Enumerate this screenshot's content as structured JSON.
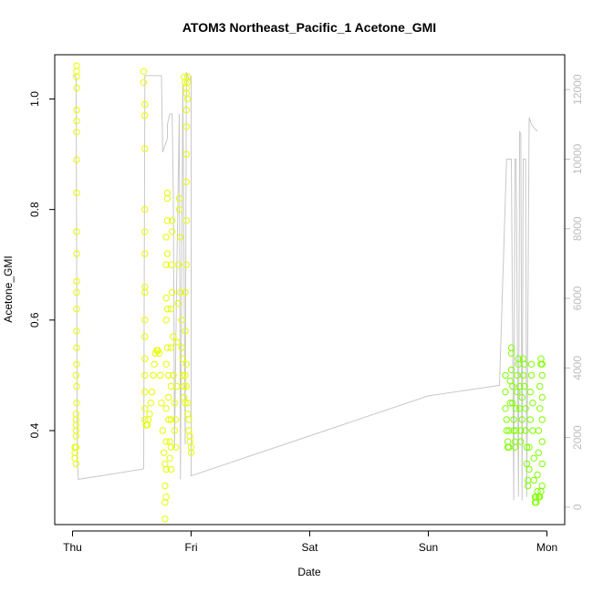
{
  "colors": {
    "altitude_line": "#c8c8c8",
    "point_yellow": "#e6ff00",
    "point_green": "#7fff00",
    "axis": "#000000",
    "right_axis": "#bdbdbd"
  },
  "chart_data": {
    "type": "scatter",
    "title": "ATOM3 Northeast_Pacific_1 Acetone_GMI",
    "xlabel": "Date",
    "ylabel": "Acetone_GMI",
    "x_ticks": [
      {
        "label": "Thu",
        "value": 0
      },
      {
        "label": "Fri",
        "value": 1
      },
      {
        "label": "Sat",
        "value": 2
      },
      {
        "label": "Sun",
        "value": 3
      },
      {
        "label": "Mon",
        "value": 4
      }
    ],
    "xlim": [
      -0.15,
      4.15
    ],
    "ylim": [
      0.23,
      1.08
    ],
    "y_ticks": [
      0.4,
      0.6,
      0.8,
      1.0
    ],
    "y_tick_labels": [
      "0.4",
      "0.6",
      "0.8",
      "1.0"
    ],
    "y2lim": [
      -500,
      13000
    ],
    "y2_ticks": [
      0,
      2000,
      4000,
      6000,
      8000,
      10000,
      12000
    ],
    "y2_tick_labels": [
      "0",
      "2000",
      "4000",
      "6000",
      "8000",
      "10000",
      "12000"
    ],
    "legend": "none",
    "grid": false,
    "series": [
      {
        "kind": "points",
        "color": "#e6ff00",
        "points": [
          [
            0.02,
            0.36
          ],
          [
            0.02,
            0.35
          ],
          [
            0.03,
            0.37
          ],
          [
            0.03,
            0.34
          ],
          [
            0.03,
            0.39
          ],
          [
            0.03,
            0.41
          ],
          [
            0.03,
            0.43
          ],
          [
            0.035,
            0.45
          ],
          [
            0.035,
            0.48
          ],
          [
            0.035,
            0.52
          ],
          [
            0.035,
            0.55
          ],
          [
            0.035,
            0.58
          ],
          [
            0.035,
            0.62
          ],
          [
            0.035,
            0.65
          ],
          [
            0.035,
            0.67
          ],
          [
            0.035,
            0.72
          ],
          [
            0.035,
            0.76
          ],
          [
            0.035,
            0.83
          ],
          [
            0.035,
            0.89
          ],
          [
            0.035,
            0.94
          ],
          [
            0.035,
            0.96
          ],
          [
            0.035,
            0.98
          ],
          [
            0.035,
            1.02
          ],
          [
            0.035,
            1.04
          ],
          [
            0.035,
            1.05
          ],
          [
            0.035,
            1.06
          ],
          [
            0.03,
            0.42
          ],
          [
            0.03,
            0.4
          ],
          [
            0.02,
            0.37
          ],
          [
            0.03,
            0.5
          ],
          [
            0.6,
            1.05
          ],
          [
            0.6,
            1.03
          ],
          [
            0.61,
            0.99
          ],
          [
            0.61,
            0.97
          ],
          [
            0.61,
            0.91
          ],
          [
            0.61,
            0.8
          ],
          [
            0.61,
            0.76
          ],
          [
            0.61,
            0.72
          ],
          [
            0.61,
            0.66
          ],
          [
            0.61,
            0.65
          ],
          [
            0.61,
            0.6
          ],
          [
            0.61,
            0.57
          ],
          [
            0.61,
            0.53
          ],
          [
            0.61,
            0.5
          ],
          [
            0.61,
            0.47
          ],
          [
            0.61,
            0.44
          ],
          [
            0.61,
            0.42
          ],
          [
            0.62,
            0.41
          ],
          [
            0.63,
            0.41
          ],
          [
            0.64,
            0.42
          ],
          [
            0.65,
            0.43
          ],
          [
            0.66,
            0.45
          ],
          [
            0.67,
            0.47
          ],
          [
            0.68,
            0.5
          ],
          [
            0.69,
            0.52
          ],
          [
            0.7,
            0.54
          ],
          [
            0.71,
            0.545
          ],
          [
            0.72,
            0.545
          ],
          [
            0.73,
            0.54
          ],
          [
            0.74,
            0.5
          ],
          [
            0.75,
            0.45
          ],
          [
            0.76,
            0.4
          ],
          [
            0.77,
            0.36
          ],
          [
            0.78,
            0.34
          ],
          [
            0.78,
            0.3
          ],
          [
            0.78,
            0.27
          ],
          [
            0.78,
            0.24
          ],
          [
            0.79,
            0.28
          ],
          [
            0.79,
            0.33
          ],
          [
            0.79,
            0.38
          ],
          [
            0.79,
            0.44
          ],
          [
            0.79,
            0.52
          ],
          [
            0.79,
            0.6
          ],
          [
            0.79,
            0.64
          ],
          [
            0.79,
            0.7
          ],
          [
            0.79,
            0.75
          ],
          [
            0.8,
            0.78
          ],
          [
            0.8,
            0.83
          ],
          [
            0.8,
            0.82
          ],
          [
            0.8,
            0.72
          ],
          [
            0.8,
            0.62
          ],
          [
            0.8,
            0.55
          ],
          [
            0.81,
            0.5
          ],
          [
            0.81,
            0.46
          ],
          [
            0.81,
            0.42
          ],
          [
            0.82,
            0.38
          ],
          [
            0.82,
            0.35
          ],
          [
            0.83,
            0.33
          ],
          [
            0.83,
            0.37
          ],
          [
            0.83,
            0.42
          ],
          [
            0.83,
            0.48
          ],
          [
            0.83,
            0.55
          ],
          [
            0.83,
            0.62
          ],
          [
            0.83,
            0.7
          ],
          [
            0.84,
            0.78
          ],
          [
            0.84,
            0.76
          ],
          [
            0.84,
            0.65
          ],
          [
            0.85,
            0.57
          ],
          [
            0.85,
            0.5
          ],
          [
            0.86,
            0.45
          ],
          [
            0.86,
            0.4
          ],
          [
            0.87,
            0.37
          ],
          [
            0.87,
            0.42
          ],
          [
            0.88,
            0.48
          ],
          [
            0.88,
            0.56
          ],
          [
            0.89,
            0.63
          ],
          [
            0.89,
            0.7
          ],
          [
            0.9,
            0.8
          ],
          [
            0.9,
            0.82
          ],
          [
            0.91,
            0.75
          ],
          [
            0.91,
            0.65
          ],
          [
            0.92,
            0.6
          ],
          [
            0.92,
            0.55
          ],
          [
            0.93,
            0.53
          ],
          [
            0.93,
            0.5
          ],
          [
            0.94,
            0.48
          ],
          [
            0.94,
            0.46
          ],
          [
            0.95,
            0.45
          ],
          [
            0.95,
            0.5
          ],
          [
            0.95,
            0.58
          ],
          [
            0.95,
            0.65
          ],
          [
            0.96,
            0.7
          ],
          [
            0.96,
            0.78
          ],
          [
            0.96,
            0.85
          ],
          [
            0.96,
            0.9
          ],
          [
            0.96,
            0.95
          ],
          [
            0.96,
            0.98
          ],
          [
            0.96,
            1.01
          ],
          [
            0.97,
            1.03
          ],
          [
            0.97,
            1.04
          ],
          [
            0.96,
            0.52
          ],
          [
            0.96,
            0.48
          ],
          [
            0.97,
            0.45
          ],
          [
            0.97,
            0.43
          ],
          [
            0.98,
            0.42
          ],
          [
            0.98,
            0.4
          ],
          [
            0.99,
            0.39
          ],
          [
            0.99,
            0.38
          ],
          [
            1.0,
            0.37
          ],
          [
            1.0,
            0.36
          ],
          [
            0.94,
            1.04
          ],
          [
            0.95,
            1.03
          ],
          [
            0.96,
            1.02
          ],
          [
            0.97,
            1.0
          ]
        ]
      },
      {
        "kind": "points",
        "color": "#7fff00",
        "points": [
          [
            3.65,
            0.5
          ],
          [
            3.65,
            0.47
          ],
          [
            3.65,
            0.44
          ],
          [
            3.66,
            0.42
          ],
          [
            3.66,
            0.4
          ],
          [
            3.67,
            0.38
          ],
          [
            3.67,
            0.37
          ],
          [
            3.68,
            0.37
          ],
          [
            3.68,
            0.4
          ],
          [
            3.69,
            0.45
          ],
          [
            3.69,
            0.49
          ],
          [
            3.7,
            0.55
          ],
          [
            3.7,
            0.54
          ],
          [
            3.7,
            0.51
          ],
          [
            3.71,
            0.48
          ],
          [
            3.71,
            0.45
          ],
          [
            3.72,
            0.42
          ],
          [
            3.72,
            0.4
          ],
          [
            3.73,
            0.38
          ],
          [
            3.73,
            0.37
          ],
          [
            3.74,
            0.4
          ],
          [
            3.74,
            0.44
          ],
          [
            3.75,
            0.47
          ],
          [
            3.75,
            0.5
          ],
          [
            3.76,
            0.53
          ],
          [
            3.76,
            0.52
          ],
          [
            3.77,
            0.48
          ],
          [
            3.77,
            0.44
          ],
          [
            3.78,
            0.4
          ],
          [
            3.78,
            0.38
          ],
          [
            3.79,
            0.42
          ],
          [
            3.79,
            0.46
          ],
          [
            3.8,
            0.5
          ],
          [
            3.8,
            0.53
          ],
          [
            3.81,
            0.52
          ],
          [
            3.81,
            0.48
          ],
          [
            3.82,
            0.44
          ],
          [
            3.82,
            0.4
          ],
          [
            3.83,
            0.37
          ],
          [
            3.83,
            0.34
          ],
          [
            3.84,
            0.31
          ],
          [
            3.84,
            0.3
          ],
          [
            3.85,
            0.33
          ],
          [
            3.85,
            0.37
          ],
          [
            3.86,
            0.42
          ],
          [
            3.86,
            0.47
          ],
          [
            3.87,
            0.52
          ],
          [
            3.87,
            0.5
          ],
          [
            3.88,
            0.45
          ],
          [
            3.88,
            0.4
          ],
          [
            3.89,
            0.35
          ],
          [
            3.89,
            0.31
          ],
          [
            3.9,
            0.28
          ],
          [
            3.9,
            0.27
          ],
          [
            3.91,
            0.27
          ],
          [
            3.91,
            0.28
          ],
          [
            3.92,
            0.29
          ],
          [
            3.92,
            0.32
          ],
          [
            3.93,
            0.36
          ],
          [
            3.93,
            0.4
          ],
          [
            3.94,
            0.44
          ],
          [
            3.94,
            0.48
          ],
          [
            3.95,
            0.52
          ],
          [
            3.95,
            0.53
          ],
          [
            3.96,
            0.52
          ],
          [
            3.96,
            0.5
          ],
          [
            3.96,
            0.46
          ],
          [
            3.96,
            0.42
          ],
          [
            3.96,
            0.38
          ],
          [
            3.96,
            0.34
          ],
          [
            3.96,
            0.3
          ],
          [
            3.95,
            0.29
          ],
          [
            3.94,
            0.28
          ],
          [
            3.93,
            0.28
          ]
        ]
      },
      {
        "kind": "line",
        "axis": "right",
        "color": "#c8c8c8",
        "points": [
          [
            0.0,
            12400
          ],
          [
            0.02,
            12400
          ],
          [
            0.03,
            12350
          ],
          [
            0.04,
            1300
          ],
          [
            0.05,
            800
          ],
          [
            0.6,
            1100
          ],
          [
            0.61,
            12400
          ],
          [
            0.7,
            12400
          ],
          [
            0.75,
            12400
          ],
          [
            0.76,
            10200
          ],
          [
            0.78,
            10400
          ],
          [
            0.8,
            10600
          ],
          [
            0.8,
            11000
          ],
          [
            0.82,
            11300
          ],
          [
            0.84,
            11300
          ],
          [
            0.85,
            9000
          ],
          [
            0.86,
            1700
          ],
          [
            0.88,
            7000
          ],
          [
            0.9,
            11300
          ],
          [
            0.91,
            800
          ],
          [
            0.93,
            12200
          ],
          [
            0.95,
            1800
          ],
          [
            0.96,
            12500
          ],
          [
            0.97,
            12400
          ],
          [
            0.98,
            12300
          ],
          [
            1.0,
            12300
          ],
          [
            1.0,
            12400
          ],
          [
            1.0,
            900
          ],
          [
            3.0,
            3200
          ],
          [
            3.6,
            3500
          ],
          [
            3.66,
            10000
          ],
          [
            3.7,
            10000
          ],
          [
            3.72,
            200
          ],
          [
            3.73,
            10000
          ],
          [
            3.74,
            10000
          ],
          [
            3.76,
            300
          ],
          [
            3.77,
            10800
          ],
          [
            3.78,
            10700
          ],
          [
            3.79,
            200
          ],
          [
            3.8,
            10000
          ],
          [
            3.82,
            10000
          ],
          [
            3.83,
            300
          ],
          [
            3.85,
            11200
          ],
          [
            3.87,
            11000
          ],
          [
            3.89,
            10900
          ],
          [
            3.92,
            10800
          ]
        ]
      }
    ]
  }
}
